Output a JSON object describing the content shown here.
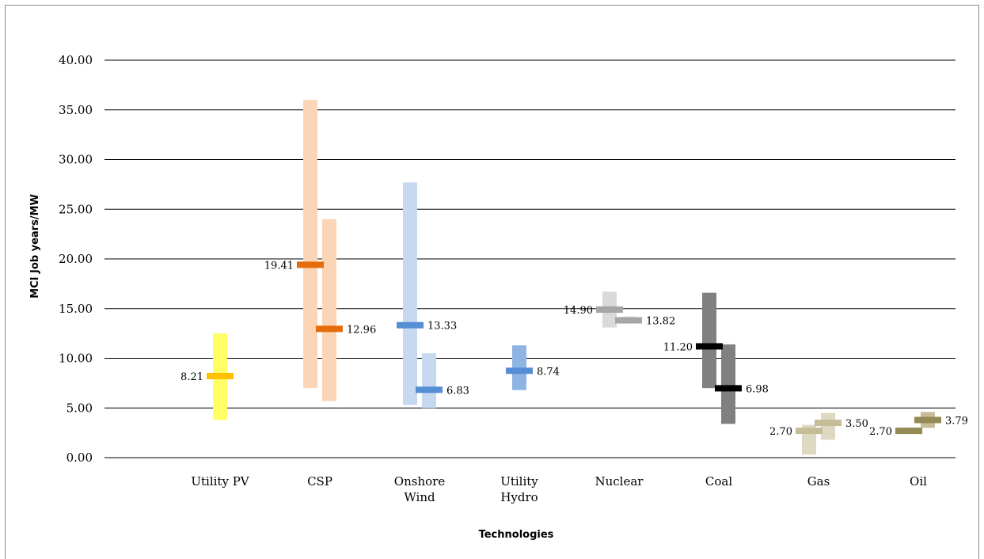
{
  "chart_data": {
    "type": "bar",
    "title": "",
    "xlabel": "Technologies",
    "ylabel": "MCI Job years/MW",
    "ylim": [
      0,
      40
    ],
    "ytick_step": 5,
    "ytick_labels": [
      "0.00",
      "5.00",
      "10.00",
      "15.00",
      "20.00",
      "25.00",
      "30.00",
      "35.00",
      "40.00"
    ],
    "grid": true,
    "legend": "none",
    "categories": [
      "Utility PV",
      "CSP",
      "Onshore Wind",
      "Utility Hydro",
      "Nuclear",
      "Coal",
      "Gas",
      "Oil"
    ],
    "category_labels": [
      [
        "Utility PV"
      ],
      [
        "CSP"
      ],
      [
        "Onshore",
        "Wind"
      ],
      [
        "Utility",
        "Hydro"
      ],
      [
        "Nuclear"
      ],
      [
        "Coal"
      ],
      [
        "Gas"
      ],
      [
        "Oil"
      ]
    ],
    "groups": [
      {
        "category": "Utility PV",
        "ranges": [
          {
            "low": 3.8,
            "high": 12.5,
            "median": 8.21,
            "label": "8.21",
            "label_side": "left",
            "bar_color": "#ffff66",
            "median_color": "#ffc000",
            "slot": 0,
            "slots": 1
          }
        ]
      },
      {
        "category": "CSP",
        "ranges": [
          {
            "low": 7.0,
            "high": 36.0,
            "median": 19.41,
            "label": "19.41",
            "label_side": "left",
            "bar_color": "#fbd5b5",
            "median_color": "#e46c0a",
            "slot": 0,
            "slots": 2
          },
          {
            "low": 5.7,
            "high": 24.0,
            "median": 12.96,
            "label": "12.96",
            "label_side": "right",
            "bar_color": "#fbd5b5",
            "median_color": "#e46c0a",
            "slot": 1,
            "slots": 2
          }
        ]
      },
      {
        "category": "Onshore Wind",
        "ranges": [
          {
            "low": 5.3,
            "high": 27.7,
            "median": 13.33,
            "label": "13.33",
            "label_side": "right",
            "bar_color": "#c6d9f1",
            "median_color": "#558ed5",
            "slot": 0,
            "slots": 2
          },
          {
            "low": 5.0,
            "high": 10.5,
            "median": 6.83,
            "label": "6.83",
            "label_side": "right",
            "bar_color": "#c6d9f1",
            "median_color": "#558ed5",
            "slot": 1,
            "slots": 2
          }
        ]
      },
      {
        "category": "Utility Hydro",
        "ranges": [
          {
            "low": 6.8,
            "high": 11.3,
            "median": 8.74,
            "label": "8.74",
            "label_side": "right",
            "bar_color": "#8eb4e3",
            "median_color": "#558ed5",
            "slot": 0,
            "slots": 1
          }
        ]
      },
      {
        "category": "Nuclear",
        "ranges": [
          {
            "low": 13.1,
            "high": 16.7,
            "median": 14.9,
            "label": "14.90",
            "label_side": "left",
            "bar_color": "#d9d9d9",
            "median_color": "#a6a6a6",
            "slot": 0,
            "slots": 2
          },
          {
            "low": 13.5,
            "high": 14.2,
            "median": 13.82,
            "label": "13.82",
            "label_side": "right",
            "bar_color": "#d9d9d9",
            "median_color": "#a6a6a6",
            "slot": 1,
            "slots": 2
          }
        ]
      },
      {
        "category": "Coal",
        "ranges": [
          {
            "low": 7.0,
            "high": 16.6,
            "median": 11.2,
            "label": "11.20",
            "label_side": "left",
            "bar_color": "#808080",
            "median_color": "#000000",
            "slot": 0,
            "slots": 2
          },
          {
            "low": 3.4,
            "high": 11.4,
            "median": 6.98,
            "label": "6.98",
            "label_side": "right",
            "bar_color": "#808080",
            "median_color": "#000000",
            "slot": 1,
            "slots": 2
          }
        ]
      },
      {
        "category": "Gas",
        "ranges": [
          {
            "low": 0.3,
            "high": 3.3,
            "median": 2.7,
            "label": "2.70",
            "label_side": "left",
            "bar_color": "#ddd9c3",
            "median_color": "#c4bd97",
            "slot": 0,
            "slots": 2
          },
          {
            "low": 1.8,
            "high": 4.5,
            "median": 3.5,
            "label": "3.50",
            "label_side": "right",
            "bar_color": "#ddd9c3",
            "median_color": "#c4bd97",
            "slot": 1,
            "slots": 2
          }
        ]
      },
      {
        "category": "Oil",
        "ranges": [
          {
            "low": 2.4,
            "high": 3.0,
            "median": 2.7,
            "label": "2.70",
            "label_side": "left",
            "bar_color": "#c4bd97",
            "median_color": "#948a54",
            "slot": 0,
            "slots": 2
          },
          {
            "low": 3.0,
            "high": 4.6,
            "median": 3.79,
            "label": "3.79",
            "label_side": "right",
            "bar_color": "#c4bd97",
            "median_color": "#948a54",
            "slot": 1,
            "slots": 2
          }
        ]
      }
    ]
  }
}
